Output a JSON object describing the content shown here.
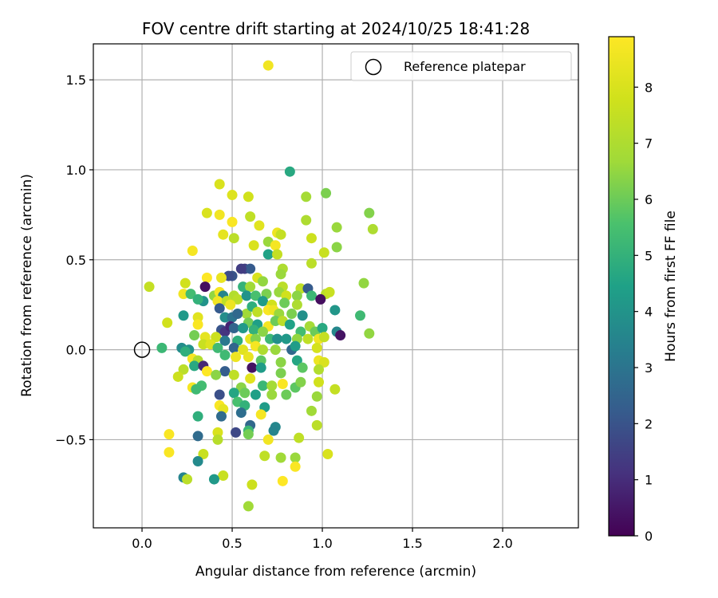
{
  "chart_data": {
    "type": "scatter",
    "title": "FOV centre drift starting at 2024/10/25 18:41:28",
    "xlabel": "Angular distance from reference (arcmin)",
    "ylabel": "Rotation from reference (arcmin)",
    "xlim": [
      -0.27,
      2.42
    ],
    "ylim": [
      -0.99,
      1.7
    ],
    "xticks": [
      0.0,
      0.5,
      1.0,
      1.5,
      2.0
    ],
    "xtick_labels": [
      "0.0",
      "0.5",
      "1.0",
      "1.5",
      "2.0"
    ],
    "yticks": [
      -0.5,
      0.0,
      0.5,
      1.0,
      1.5
    ],
    "ytick_labels": [
      "−0.5",
      "0.0",
      "0.5",
      "1.0",
      "1.5"
    ],
    "grid": true,
    "legend": {
      "placement": "top-right",
      "entries": [
        {
          "label": "Reference platepar",
          "marker": "open-circle"
        }
      ]
    },
    "reference_point": {
      "x": 0.0,
      "y": 0.0
    },
    "colorbar": {
      "label": "Hours from first FF file",
      "min": 0,
      "max": 8.9,
      "ticks": [
        0,
        1,
        2,
        3,
        4,
        5,
        6,
        7,
        8
      ],
      "tick_labels": [
        "0",
        "1",
        "2",
        "3",
        "4",
        "5",
        "6",
        "7",
        "8"
      ],
      "colormap": "viridis"
    },
    "points": [
      {
        "x": 0.7,
        "y": 1.58,
        "c": 8.6
      },
      {
        "x": 0.82,
        "y": 0.99,
        "c": 4.7
      },
      {
        "x": 1.02,
        "y": 0.87,
        "c": 6.2
      },
      {
        "x": 0.59,
        "y": 0.85,
        "c": 7.8
      },
      {
        "x": 0.43,
        "y": 0.92,
        "c": 8.0
      },
      {
        "x": 0.5,
        "y": 0.86,
        "c": 8.1
      },
      {
        "x": 0.91,
        "y": 0.85,
        "c": 6.8
      },
      {
        "x": 1.26,
        "y": 0.76,
        "c": 6.3
      },
      {
        "x": 0.36,
        "y": 0.76,
        "c": 8.0
      },
      {
        "x": 0.43,
        "y": 0.75,
        "c": 8.6
      },
      {
        "x": 0.5,
        "y": 0.71,
        "c": 8.8
      },
      {
        "x": 0.6,
        "y": 0.74,
        "c": 7.4
      },
      {
        "x": 0.65,
        "y": 0.69,
        "c": 8.2
      },
      {
        "x": 0.91,
        "y": 0.72,
        "c": 7.0
      },
      {
        "x": 1.08,
        "y": 0.68,
        "c": 6.6
      },
      {
        "x": 1.28,
        "y": 0.67,
        "c": 7.0
      },
      {
        "x": 0.45,
        "y": 0.64,
        "c": 8.3
      },
      {
        "x": 0.51,
        "y": 0.62,
        "c": 7.3
      },
      {
        "x": 0.7,
        "y": 0.6,
        "c": 6.6
      },
      {
        "x": 0.75,
        "y": 0.65,
        "c": 8.5
      },
      {
        "x": 0.77,
        "y": 0.64,
        "c": 7.5
      },
      {
        "x": 0.94,
        "y": 0.62,
        "c": 7.7
      },
      {
        "x": 0.62,
        "y": 0.58,
        "c": 8.0
      },
      {
        "x": 0.74,
        "y": 0.58,
        "c": 8.7
      },
      {
        "x": 1.08,
        "y": 0.57,
        "c": 6.4
      },
      {
        "x": 0.28,
        "y": 0.55,
        "c": 8.7
      },
      {
        "x": 0.7,
        "y": 0.53,
        "c": 4.5
      },
      {
        "x": 0.75,
        "y": 0.53,
        "c": 7.5
      },
      {
        "x": 1.01,
        "y": 0.54,
        "c": 7.6
      },
      {
        "x": 0.94,
        "y": 0.48,
        "c": 7.3
      },
      {
        "x": 0.57,
        "y": 0.45,
        "c": 1.5
      },
      {
        "x": 0.6,
        "y": 0.45,
        "c": 2.2
      },
      {
        "x": 0.78,
        "y": 0.45,
        "c": 7.0
      },
      {
        "x": 0.55,
        "y": 0.45,
        "c": 1.4
      },
      {
        "x": 0.5,
        "y": 0.41,
        "c": 2.0
      },
      {
        "x": 0.48,
        "y": 0.41,
        "c": 1.8
      },
      {
        "x": 0.36,
        "y": 0.4,
        "c": 8.9
      },
      {
        "x": 0.44,
        "y": 0.4,
        "c": 8.4
      },
      {
        "x": 0.77,
        "y": 0.42,
        "c": 6.6
      },
      {
        "x": 0.64,
        "y": 0.4,
        "c": 8.0
      },
      {
        "x": 0.67,
        "y": 0.38,
        "c": 6.5
      },
      {
        "x": 0.24,
        "y": 0.37,
        "c": 7.8
      },
      {
        "x": 0.35,
        "y": 0.35,
        "c": 0.3
      },
      {
        "x": 0.56,
        "y": 0.35,
        "c": 5.0
      },
      {
        "x": 0.6,
        "y": 0.35,
        "c": 6.7
      },
      {
        "x": 0.78,
        "y": 0.35,
        "c": 7.3
      },
      {
        "x": 0.88,
        "y": 0.34,
        "c": 7.4
      },
      {
        "x": 0.92,
        "y": 0.34,
        "c": 2.2
      },
      {
        "x": 1.23,
        "y": 0.37,
        "c": 6.5
      },
      {
        "x": 0.04,
        "y": 0.35,
        "c": 7.5
      },
      {
        "x": 0.23,
        "y": 0.31,
        "c": 8.6
      },
      {
        "x": 0.27,
        "y": 0.31,
        "c": 5.4
      },
      {
        "x": 0.4,
        "y": 0.3,
        "c": 6.5
      },
      {
        "x": 0.43,
        "y": 0.32,
        "c": 8.7
      },
      {
        "x": 0.45,
        "y": 0.3,
        "c": 3.5
      },
      {
        "x": 0.51,
        "y": 0.3,
        "c": 7.1
      },
      {
        "x": 0.53,
        "y": 0.28,
        "c": 7.3
      },
      {
        "x": 0.58,
        "y": 0.3,
        "c": 4.0
      },
      {
        "x": 0.63,
        "y": 0.3,
        "c": 5.5
      },
      {
        "x": 0.69,
        "y": 0.31,
        "c": 6.2
      },
      {
        "x": 0.76,
        "y": 0.32,
        "c": 6.6
      },
      {
        "x": 0.8,
        "y": 0.3,
        "c": 7.8
      },
      {
        "x": 0.86,
        "y": 0.3,
        "c": 6.4
      },
      {
        "x": 0.94,
        "y": 0.3,
        "c": 5.2
      },
      {
        "x": 1.02,
        "y": 0.31,
        "c": 7.3
      },
      {
        "x": 1.04,
        "y": 0.32,
        "c": 7.6
      },
      {
        "x": 0.34,
        "y": 0.27,
        "c": 4.0
      },
      {
        "x": 0.31,
        "y": 0.28,
        "c": 5.0
      },
      {
        "x": 0.42,
        "y": 0.27,
        "c": 8.6
      },
      {
        "x": 0.47,
        "y": 0.27,
        "c": 7.4
      },
      {
        "x": 0.49,
        "y": 0.25,
        "c": 8.5
      },
      {
        "x": 0.67,
        "y": 0.27,
        "c": 4.3
      },
      {
        "x": 0.72,
        "y": 0.25,
        "c": 7.8
      },
      {
        "x": 0.79,
        "y": 0.26,
        "c": 6.0
      },
      {
        "x": 0.86,
        "y": 0.25,
        "c": 7.0
      },
      {
        "x": 0.99,
        "y": 0.28,
        "c": 0.3
      },
      {
        "x": 0.43,
        "y": 0.23,
        "c": 2.2
      },
      {
        "x": 0.58,
        "y": 0.2,
        "c": 6.7
      },
      {
        "x": 0.61,
        "y": 0.24,
        "c": 4.9
      },
      {
        "x": 0.64,
        "y": 0.21,
        "c": 7.4
      },
      {
        "x": 0.7,
        "y": 0.22,
        "c": 8.8
      },
      {
        "x": 0.73,
        "y": 0.22,
        "c": 8.5
      },
      {
        "x": 0.76,
        "y": 0.2,
        "c": 6.6
      },
      {
        "x": 0.83,
        "y": 0.2,
        "c": 6.2
      },
      {
        "x": 1.07,
        "y": 0.22,
        "c": 4.1
      },
      {
        "x": 1.21,
        "y": 0.19,
        "c": 5.3
      },
      {
        "x": 0.23,
        "y": 0.19,
        "c": 4.2
      },
      {
        "x": 0.31,
        "y": 0.18,
        "c": 8.2
      },
      {
        "x": 0.46,
        "y": 0.18,
        "c": 3.8
      },
      {
        "x": 0.5,
        "y": 0.18,
        "c": 3.0
      },
      {
        "x": 0.53,
        "y": 0.2,
        "c": 2.6
      },
      {
        "x": 0.59,
        "y": 0.15,
        "c": 6.1
      },
      {
        "x": 0.64,
        "y": 0.14,
        "c": 4.4
      },
      {
        "x": 0.7,
        "y": 0.13,
        "c": 8.7
      },
      {
        "x": 0.74,
        "y": 0.16,
        "c": 6.0
      },
      {
        "x": 0.78,
        "y": 0.16,
        "c": 7.3
      },
      {
        "x": 0.89,
        "y": 0.19,
        "c": 3.9
      },
      {
        "x": 0.93,
        "y": 0.13,
        "c": 6.8
      },
      {
        "x": 0.14,
        "y": 0.15,
        "c": 7.8
      },
      {
        "x": 0.31,
        "y": 0.14,
        "c": 8.8
      },
      {
        "x": 0.44,
        "y": 0.11,
        "c": 2.0
      },
      {
        "x": 0.46,
        "y": 0.1,
        "c": 1.2
      },
      {
        "x": 0.49,
        "y": 0.13,
        "c": 0.8
      },
      {
        "x": 0.51,
        "y": 0.12,
        "c": 2.5
      },
      {
        "x": 0.56,
        "y": 0.12,
        "c": 4.2
      },
      {
        "x": 0.62,
        "y": 0.11,
        "c": 5.0
      },
      {
        "x": 0.67,
        "y": 0.1,
        "c": 6.4
      },
      {
        "x": 0.82,
        "y": 0.14,
        "c": 4.5
      },
      {
        "x": 0.88,
        "y": 0.1,
        "c": 5.4
      },
      {
        "x": 0.96,
        "y": 0.1,
        "c": 6.0
      },
      {
        "x": 1.0,
        "y": 0.12,
        "c": 4.7
      },
      {
        "x": 1.08,
        "y": 0.1,
        "c": 3.6
      },
      {
        "x": 1.1,
        "y": 0.08,
        "c": 0.4
      },
      {
        "x": 1.26,
        "y": 0.09,
        "c": 6.5
      },
      {
        "x": 0.29,
        "y": 0.08,
        "c": 6.1
      },
      {
        "x": 0.35,
        "y": 0.07,
        "c": 8.3
      },
      {
        "x": 0.41,
        "y": 0.07,
        "c": 7.7
      },
      {
        "x": 0.46,
        "y": 0.05,
        "c": 3.1
      },
      {
        "x": 0.53,
        "y": 0.05,
        "c": 4.9
      },
      {
        "x": 0.6,
        "y": 0.06,
        "c": 8.3
      },
      {
        "x": 0.63,
        "y": 0.06,
        "c": 6.3
      },
      {
        "x": 0.71,
        "y": 0.06,
        "c": 5.2
      },
      {
        "x": 0.75,
        "y": 0.06,
        "c": 3.9
      },
      {
        "x": 0.8,
        "y": 0.06,
        "c": 4.2
      },
      {
        "x": 0.86,
        "y": 0.06,
        "c": 6.5
      },
      {
        "x": 0.92,
        "y": 0.06,
        "c": 7.4
      },
      {
        "x": 0.98,
        "y": 0.06,
        "c": 8.6
      },
      {
        "x": 1.01,
        "y": 0.07,
        "c": 7.5
      },
      {
        "x": 0.22,
        "y": 0.01,
        "c": 3.8
      },
      {
        "x": 0.26,
        "y": 0.0,
        "c": 4.0
      },
      {
        "x": 0.34,
        "y": 0.03,
        "c": 7.6
      },
      {
        "x": 0.38,
        "y": 0.03,
        "c": 8.1
      },
      {
        "x": 0.42,
        "y": 0.01,
        "c": 5.3
      },
      {
        "x": 0.51,
        "y": 0.01,
        "c": 2.5
      },
      {
        "x": 0.56,
        "y": 0.0,
        "c": 8.2
      },
      {
        "x": 0.63,
        "y": 0.02,
        "c": 8.7
      },
      {
        "x": 0.67,
        "y": 0.0,
        "c": 7.0
      },
      {
        "x": 0.74,
        "y": 0.0,
        "c": 6.6
      },
      {
        "x": 0.83,
        "y": 0.0,
        "c": 2.6
      },
      {
        "x": 0.85,
        "y": 0.02,
        "c": 4.3
      },
      {
        "x": 0.97,
        "y": 0.01,
        "c": 7.9
      },
      {
        "x": 0.11,
        "y": 0.01,
        "c": 5.2
      },
      {
        "x": 0.24,
        "y": -0.01,
        "c": 4.9
      },
      {
        "x": 0.28,
        "y": -0.05,
        "c": 8.7
      },
      {
        "x": 0.31,
        "y": -0.06,
        "c": 7.1
      },
      {
        "x": 0.46,
        "y": -0.03,
        "c": 5.3
      },
      {
        "x": 0.52,
        "y": -0.04,
        "c": 8.5
      },
      {
        "x": 0.59,
        "y": -0.04,
        "c": 8.4
      },
      {
        "x": 0.66,
        "y": -0.06,
        "c": 5.8
      },
      {
        "x": 0.77,
        "y": -0.07,
        "c": 6.4
      },
      {
        "x": 0.86,
        "y": -0.06,
        "c": 4.6
      },
      {
        "x": 0.98,
        "y": -0.06,
        "c": 8.5
      },
      {
        "x": 1.01,
        "y": -0.07,
        "c": 8.0
      },
      {
        "x": 0.29,
        "y": -0.09,
        "c": 4.7
      },
      {
        "x": 0.34,
        "y": -0.09,
        "c": 0.9
      },
      {
        "x": 0.46,
        "y": -0.12,
        "c": 2.3
      },
      {
        "x": 0.61,
        "y": -0.1,
        "c": 0.4
      },
      {
        "x": 0.66,
        "y": -0.1,
        "c": 4.3
      },
      {
        "x": 0.36,
        "y": -0.12,
        "c": 8.9
      },
      {
        "x": 0.23,
        "y": -0.11,
        "c": 7.3
      },
      {
        "x": 0.2,
        "y": -0.15,
        "c": 7.7
      },
      {
        "x": 0.41,
        "y": -0.14,
        "c": 6.4
      },
      {
        "x": 0.51,
        "y": -0.14,
        "c": 7.4
      },
      {
        "x": 0.6,
        "y": -0.16,
        "c": 8.2
      },
      {
        "x": 0.77,
        "y": -0.13,
        "c": 6.2
      },
      {
        "x": 0.89,
        "y": -0.1,
        "c": 5.8
      },
      {
        "x": 0.98,
        "y": -0.11,
        "c": 7.1
      },
      {
        "x": 0.28,
        "y": -0.21,
        "c": 8.7
      },
      {
        "x": 0.33,
        "y": -0.2,
        "c": 5.4
      },
      {
        "x": 0.55,
        "y": -0.21,
        "c": 6.4
      },
      {
        "x": 0.67,
        "y": -0.2,
        "c": 5.2
      },
      {
        "x": 0.72,
        "y": -0.2,
        "c": 6.8
      },
      {
        "x": 0.78,
        "y": -0.19,
        "c": 8.8
      },
      {
        "x": 0.85,
        "y": -0.21,
        "c": 5.8
      },
      {
        "x": 0.88,
        "y": -0.18,
        "c": 6.3
      },
      {
        "x": 0.98,
        "y": -0.18,
        "c": 7.8
      },
      {
        "x": 1.07,
        "y": -0.22,
        "c": 7.5
      },
      {
        "x": 0.3,
        "y": -0.22,
        "c": 5.3
      },
      {
        "x": 0.43,
        "y": -0.25,
        "c": 1.9
      },
      {
        "x": 0.51,
        "y": -0.24,
        "c": 4.6
      },
      {
        "x": 0.57,
        "y": -0.24,
        "c": 6.0
      },
      {
        "x": 0.63,
        "y": -0.25,
        "c": 4.4
      },
      {
        "x": 0.72,
        "y": -0.25,
        "c": 6.6
      },
      {
        "x": 0.8,
        "y": -0.25,
        "c": 6.0
      },
      {
        "x": 0.97,
        "y": -0.26,
        "c": 6.6
      },
      {
        "x": 0.53,
        "y": -0.29,
        "c": 5.5
      },
      {
        "x": 0.43,
        "y": -0.31,
        "c": 8.8
      },
      {
        "x": 0.57,
        "y": -0.31,
        "c": 5.0
      },
      {
        "x": 0.68,
        "y": -0.32,
        "c": 4.3
      },
      {
        "x": 0.45,
        "y": -0.33,
        "c": 8.3
      },
      {
        "x": 0.55,
        "y": -0.35,
        "c": 2.8
      },
      {
        "x": 0.66,
        "y": -0.36,
        "c": 8.7
      },
      {
        "x": 0.94,
        "y": -0.34,
        "c": 6.7
      },
      {
        "x": 0.31,
        "y": -0.37,
        "c": 4.9
      },
      {
        "x": 0.44,
        "y": -0.37,
        "c": 2.7
      },
      {
        "x": 0.6,
        "y": -0.42,
        "c": 2.6
      },
      {
        "x": 0.74,
        "y": -0.43,
        "c": 3.6
      },
      {
        "x": 0.97,
        "y": -0.42,
        "c": 7.3
      },
      {
        "x": 0.73,
        "y": -0.45,
        "c": 3.5
      },
      {
        "x": 0.59,
        "y": -0.45,
        "c": 5.2
      },
      {
        "x": 0.52,
        "y": -0.46,
        "c": 1.7
      },
      {
        "x": 0.15,
        "y": -0.47,
        "c": 8.8
      },
      {
        "x": 0.31,
        "y": -0.48,
        "c": 2.7
      },
      {
        "x": 0.42,
        "y": -0.46,
        "c": 8.0
      },
      {
        "x": 0.59,
        "y": -0.47,
        "c": 6.1
      },
      {
        "x": 0.7,
        "y": -0.5,
        "c": 8.6
      },
      {
        "x": 0.87,
        "y": -0.49,
        "c": 7.4
      },
      {
        "x": 0.42,
        "y": -0.5,
        "c": 7.2
      },
      {
        "x": 0.15,
        "y": -0.57,
        "c": 8.8
      },
      {
        "x": 0.34,
        "y": -0.58,
        "c": 7.6
      },
      {
        "x": 0.68,
        "y": -0.59,
        "c": 7.4
      },
      {
        "x": 0.77,
        "y": -0.6,
        "c": 6.7
      },
      {
        "x": 0.85,
        "y": -0.6,
        "c": 6.6
      },
      {
        "x": 1.03,
        "y": -0.58,
        "c": 8.0
      },
      {
        "x": 0.31,
        "y": -0.62,
        "c": 3.7
      },
      {
        "x": 0.85,
        "y": -0.65,
        "c": 8.8
      },
      {
        "x": 0.23,
        "y": -0.71,
        "c": 3.5
      },
      {
        "x": 0.25,
        "y": -0.72,
        "c": 7.3
      },
      {
        "x": 0.45,
        "y": -0.7,
        "c": 7.6
      },
      {
        "x": 0.4,
        "y": -0.72,
        "c": 4.2
      },
      {
        "x": 0.78,
        "y": -0.73,
        "c": 8.9
      },
      {
        "x": 0.61,
        "y": -0.75,
        "c": 7.7
      },
      {
        "x": 0.59,
        "y": -0.87,
        "c": 6.7
      }
    ]
  }
}
